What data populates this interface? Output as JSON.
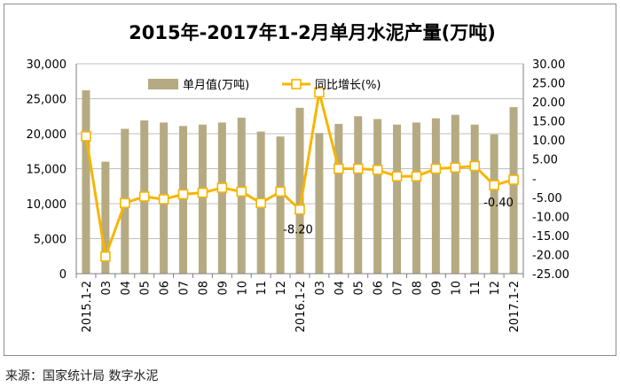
{
  "colors": {
    "bar": "#b5aa82",
    "line": "#f7b500",
    "marker_fill": "#ffffff",
    "grid": "#bfbfbf",
    "axis": "#7f7f7f",
    "text": "#000000"
  },
  "source": {
    "label": "来源：",
    "text": "国家统计局  数字水泥"
  },
  "chart_data": {
    "type": "bar",
    "title": "2015年-2017年1-2月单月水泥产量(万吨)",
    "categories": [
      "2015.1-2",
      "03",
      "04",
      "05",
      "06",
      "07",
      "08",
      "09",
      "10",
      "11",
      "12",
      "2016.1-2",
      "03",
      "04",
      "05",
      "06",
      "07",
      "08",
      "09",
      "10",
      "11",
      "12",
      "2017.1-2"
    ],
    "series": [
      {
        "name": "单月值(万吨)",
        "type": "bar",
        "axis": "left",
        "values": [
          26200,
          16000,
          20700,
          21900,
          21600,
          21100,
          21300,
          21600,
          22300,
          20300,
          19600,
          23700,
          20100,
          21400,
          22500,
          22100,
          21300,
          21600,
          22200,
          22700,
          21300,
          19900,
          23800
        ]
      },
      {
        "name": "同比增长(%)",
        "type": "line",
        "axis": "right",
        "values": [
          11.0,
          -20.5,
          -6.5,
          -4.8,
          -5.5,
          -4.2,
          -3.8,
          -2.5,
          -3.5,
          -6.5,
          -3.5,
          -8.2,
          22.5,
          2.5,
          2.5,
          2.2,
          0.5,
          0.5,
          2.5,
          2.8,
          3.2,
          -1.8,
          -0.4
        ]
      }
    ],
    "left_axis": {
      "min": 0,
      "max": 30000,
      "step": 5000,
      "ticks": [
        "0",
        "5,000",
        "10,000",
        "15,000",
        "20,000",
        "25,000",
        "30,000"
      ]
    },
    "right_axis": {
      "min": -25,
      "max": 30,
      "step": 5,
      "ticks": [
        "-25.00",
        "-20.00",
        "-15.00",
        "-10.00",
        "-5.00",
        "-",
        "5.00",
        "10.00",
        "15.00",
        "20.00",
        "25.00",
        "30.00"
      ]
    },
    "annotations": [
      {
        "index": 11,
        "text": "-8.20"
      },
      {
        "index": 22,
        "text": "-0.40"
      }
    ],
    "legend": "top-center",
    "grid": true
  }
}
